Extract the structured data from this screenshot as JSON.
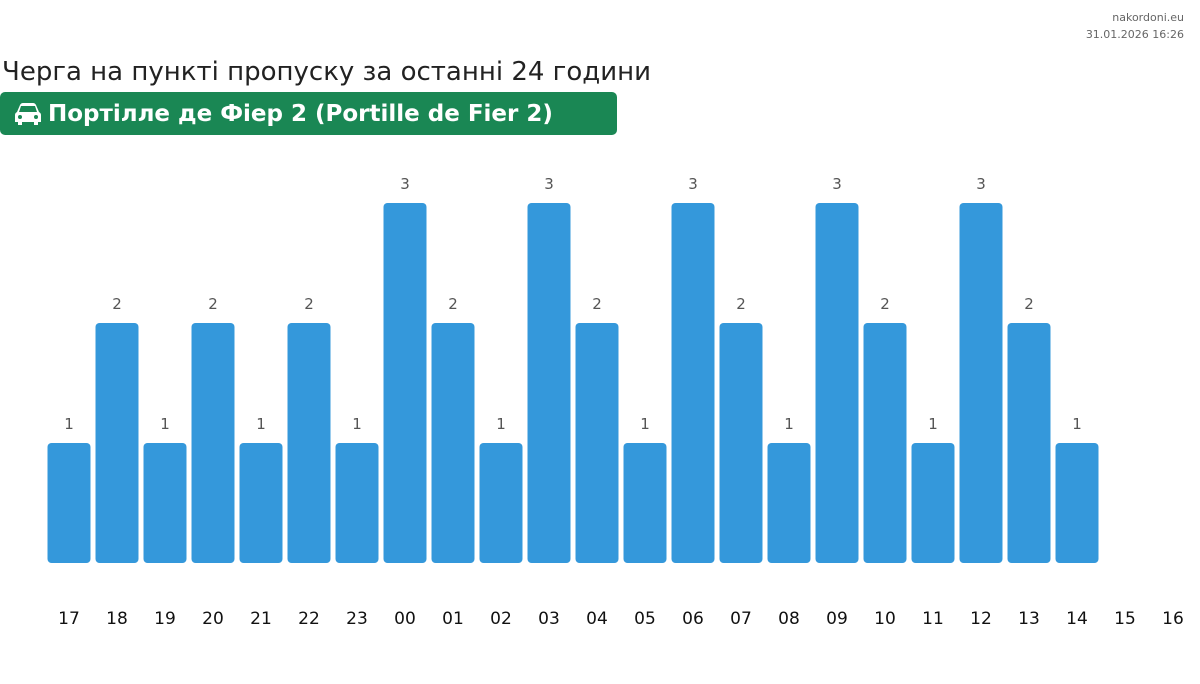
{
  "site": {
    "name": "nakordoni.eu",
    "timestamp": "31.01.2026 16:26"
  },
  "header": {
    "title": "Черга на пункті пропуску за останні 24 години",
    "checkpoint": "Портілле де Фіер 2 (Portille de Fier 2)",
    "checkpoint_icon": "car-icon",
    "badge_color": "#1a8754"
  },
  "chart_data": {
    "type": "bar",
    "categories": [
      "17",
      "18",
      "19",
      "20",
      "21",
      "22",
      "23",
      "00",
      "01",
      "02",
      "03",
      "04",
      "05",
      "06",
      "07",
      "08",
      "09",
      "10",
      "11",
      "12",
      "13",
      "14",
      "15",
      "16"
    ],
    "values": [
      1,
      2,
      1,
      2,
      1,
      2,
      1,
      3,
      2,
      1,
      3,
      2,
      1,
      3,
      2,
      1,
      3,
      2,
      1,
      3,
      2,
      1,
      null,
      null
    ],
    "bar_color": "#3498db",
    "ylim": [
      0,
      3
    ],
    "grid": false,
    "data_labels": true
  }
}
